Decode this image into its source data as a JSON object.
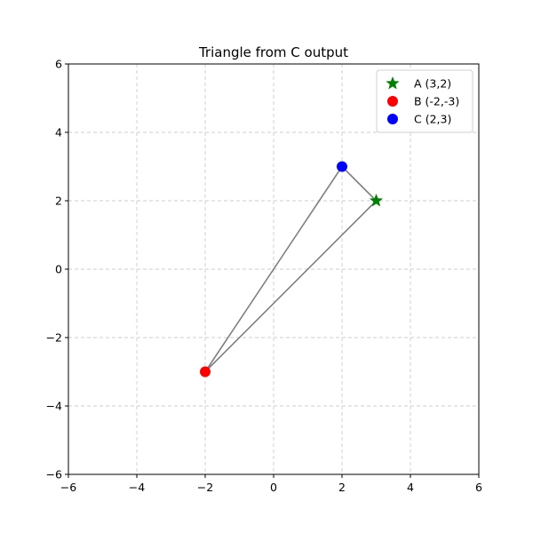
{
  "chart_data": {
    "type": "scatter",
    "title": "Triangle from C output",
    "xlabel": "",
    "ylabel": "",
    "xlim": [
      -6,
      6
    ],
    "ylim": [
      -6,
      6
    ],
    "x_ticks": [
      -6,
      -4,
      -2,
      0,
      2,
      4,
      6
    ],
    "y_ticks": [
      -6,
      -4,
      -2,
      0,
      2,
      4,
      6
    ],
    "grid": true,
    "legend_position": "top-right",
    "points": [
      {
        "name": "A (3,2)",
        "x": 3,
        "y": 2,
        "marker": "star",
        "color": "#008000"
      },
      {
        "name": "B (-2,-3)",
        "x": -2,
        "y": -3,
        "marker": "circle",
        "color": "#ff0000"
      },
      {
        "name": "C (2,3)",
        "x": 2,
        "y": 3,
        "marker": "circle",
        "color": "#0000ff"
      }
    ],
    "triangle_edge_color": "#808080"
  }
}
